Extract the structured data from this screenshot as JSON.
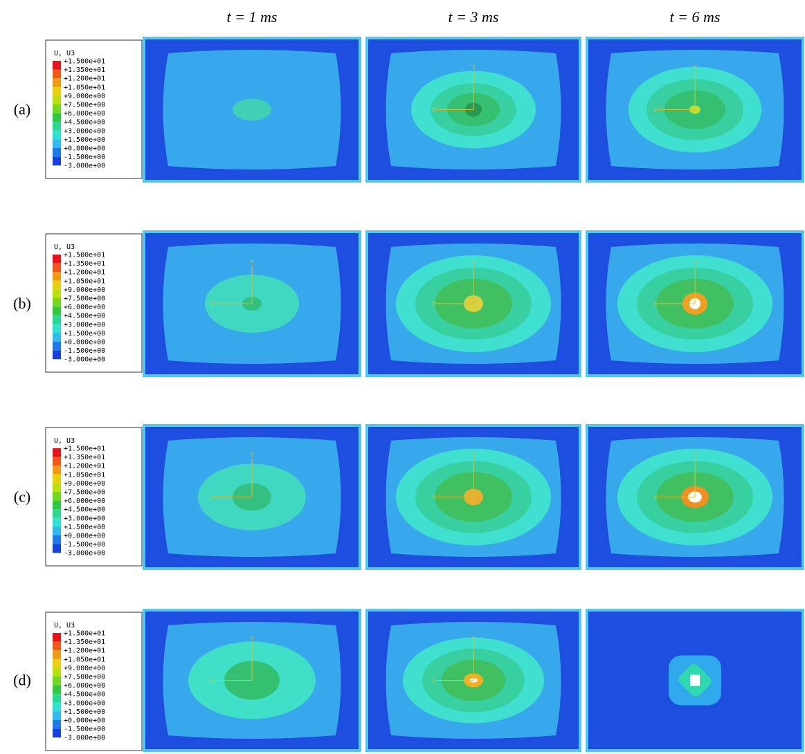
{
  "figure": {
    "columns": [
      "t = 1 ms",
      "t = 3 ms",
      "t = 6 ms"
    ],
    "rows": [
      "(a)",
      "(b)",
      "(c)",
      "(d)"
    ],
    "legend": {
      "title": "U, U3",
      "labels": [
        "+1.500e+01",
        "+1.350e+01",
        "+1.200e+01",
        "+1.050e+01",
        "+9.000e+00",
        "+7.500e+00",
        "+6.000e+00",
        "+4.500e+00",
        "+3.000e+00",
        "+1.500e+00",
        "+0.000e+00",
        "-1.500e+00",
        "-3.000e+00"
      ],
      "colors": [
        "#e8121a",
        "#f0581a",
        "#f09a10",
        "#e8d010",
        "#b8e010",
        "#70d820",
        "#30c840",
        "#28d890",
        "#30e0d0",
        "#30b8f0",
        "#2078e8",
        "#1840e0"
      ]
    },
    "axis_labels": {
      "x": "X",
      "y": "Y"
    }
  }
}
